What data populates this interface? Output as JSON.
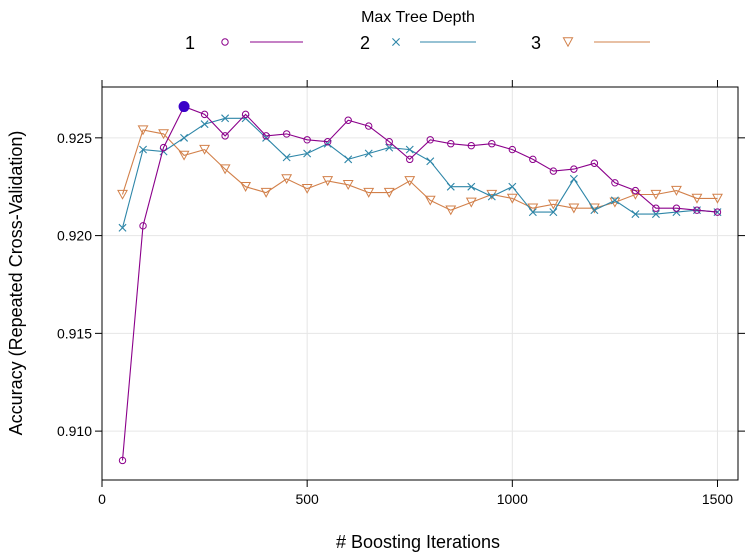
{
  "chart_data": {
    "type": "line",
    "legend": {
      "title": "Max Tree Depth",
      "position": "top"
    },
    "xlabel": "# Boosting Iterations",
    "ylabel": "Accuracy (Repeated Cross-Validation)",
    "xlim": [
      0,
      1550
    ],
    "ylim": [
      0.9075,
      0.9276
    ],
    "xticks": [
      0,
      500,
      1000,
      1500
    ],
    "xtick_labels": [
      "0",
      "500",
      "1000",
      "1500"
    ],
    "yticks": [
      0.91,
      0.915,
      0.92,
      0.925
    ],
    "ytick_labels": [
      "0.910",
      "0.915",
      "0.920",
      "0.925"
    ],
    "grid": true,
    "x": [
      50,
      100,
      150,
      200,
      250,
      300,
      350,
      400,
      450,
      500,
      550,
      600,
      650,
      700,
      750,
      800,
      850,
      900,
      950,
      1000,
      1050,
      1100,
      1150,
      1200,
      1250,
      1300,
      1350,
      1400,
      1450,
      1500
    ],
    "series": [
      {
        "name": "1",
        "color": "#8B008B",
        "marker": "circle",
        "values": [
          0.9085,
          0.9205,
          0.9245,
          0.9266,
          0.9262,
          0.9251,
          0.9262,
          0.9251,
          0.9252,
          0.9249,
          0.9248,
          0.9259,
          0.9256,
          0.9248,
          0.9239,
          0.9249,
          0.9247,
          0.9246,
          0.9247,
          0.9244,
          0.9239,
          0.9233,
          0.9234,
          0.9237,
          0.9227,
          0.9223,
          0.9214,
          0.9214,
          0.9213,
          0.9212
        ]
      },
      {
        "name": "2",
        "color": "#2E86A8",
        "marker": "x",
        "values": [
          0.9204,
          0.9244,
          0.9243,
          0.925,
          0.9257,
          0.926,
          0.926,
          0.925,
          0.924,
          0.9242,
          0.9247,
          0.9239,
          0.9242,
          0.9245,
          0.9244,
          0.9238,
          0.9225,
          0.9225,
          0.922,
          0.9225,
          0.9212,
          0.9212,
          0.9229,
          0.9213,
          0.9218,
          0.9211,
          0.9211,
          0.9212,
          0.9213,
          0.9212
        ]
      },
      {
        "name": "3",
        "color": "#D2804A",
        "marker": "triangle-down",
        "values": [
          0.9221,
          0.9254,
          0.9252,
          0.9241,
          0.9244,
          0.9234,
          0.9225,
          0.9222,
          0.9229,
          0.9224,
          0.9228,
          0.9226,
          0.9222,
          0.9222,
          0.9228,
          0.9218,
          0.9213,
          0.9217,
          0.9221,
          0.9219,
          0.9214,
          0.9216,
          0.9214,
          0.9214,
          0.9217,
          0.9221,
          0.9221,
          0.9223,
          0.9219,
          0.9219
        ]
      }
    ],
    "highlight": {
      "x": 200,
      "y": 0.9266,
      "color": "#3A00C8"
    }
  }
}
